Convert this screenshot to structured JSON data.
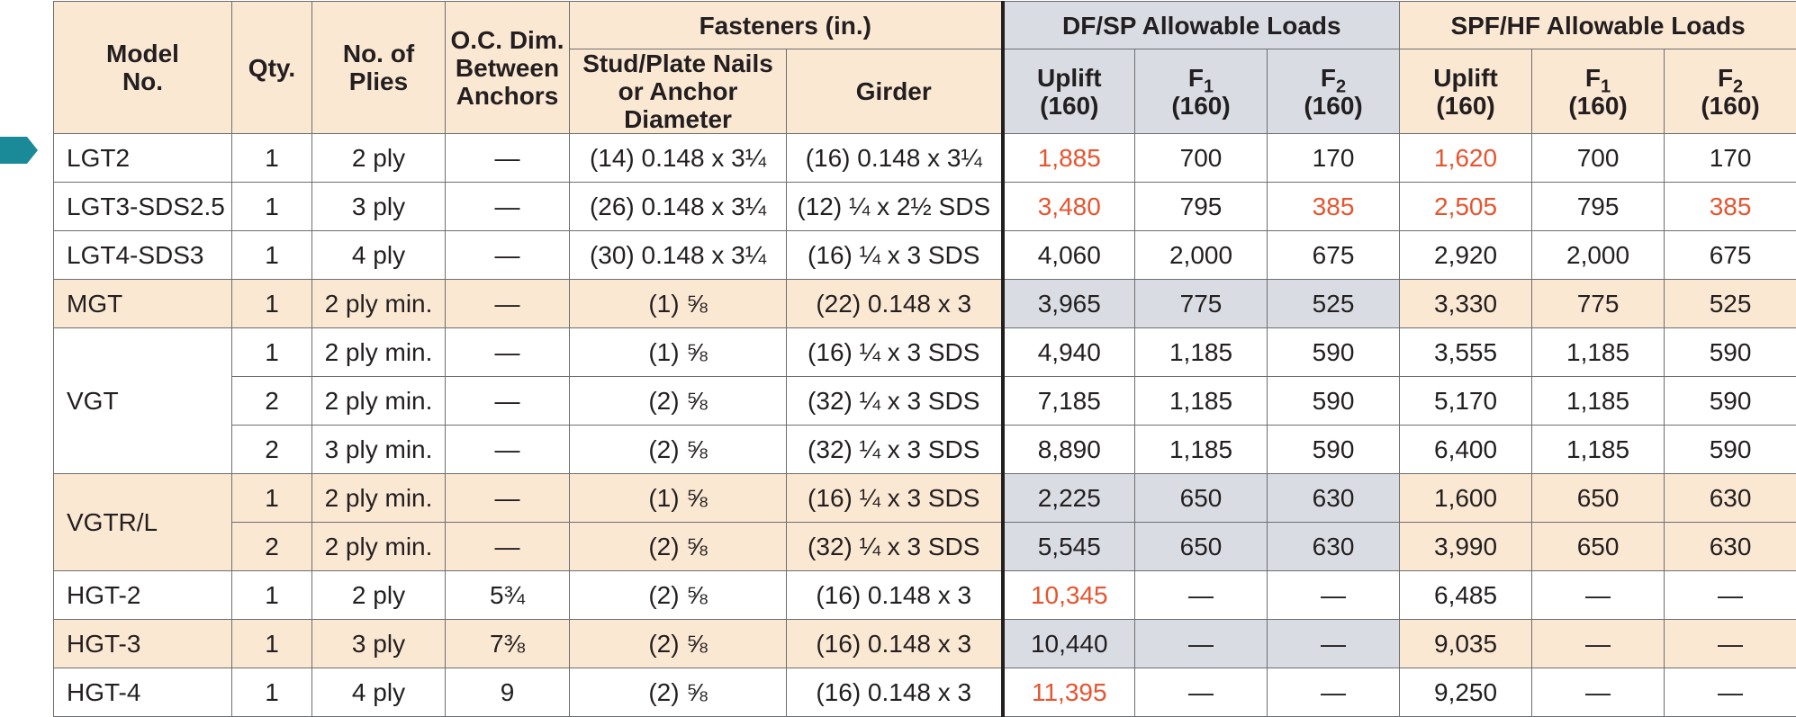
{
  "colors": {
    "peach": "#fbe8d3",
    "blue_gray": "#d9dde3",
    "red": "#e8542e",
    "teal": "#1a8a99"
  },
  "header": {
    "model_no": "Model No.",
    "qty": "Qty.",
    "plies": "No. of Plies",
    "oc_dim": "O.C. Dim. Between Anchors",
    "fasteners": "Fasteners (in.)",
    "stud_plate": "Stud/Plate Nails or Anchor Diameter",
    "girder": "Girder",
    "dfsp": "DF/SP Allowable Loads",
    "spfhf": "SPF/HF Allowable Loads",
    "uplift": "Uplift",
    "f": "F",
    "sub1": "1",
    "sub2": "2",
    "load": "(160)"
  },
  "rows": [
    {
      "model": "LGT2",
      "qty": "1",
      "plies": "2 ply",
      "oc": "—",
      "stud": "(14) 0.148 x 3¼",
      "girder": "(16) 0.148 x 3¼",
      "df_up": "1,885",
      "df_f1": "700",
      "df_f2": "170",
      "spf_up": "1,620",
      "spf_f1": "700",
      "spf_f2": "170"
    },
    {
      "model": "LGT3-SDS2.5",
      "qty": "1",
      "plies": "3 ply",
      "oc": "—",
      "stud": "(26) 0.148 x 3¼",
      "girder": "(12) ¼ x 2½ SDS",
      "df_up": "3,480",
      "df_f1": "795",
      "df_f2": "385",
      "spf_up": "2,505",
      "spf_f1": "795",
      "spf_f2": "385"
    },
    {
      "model": "LGT4-SDS3",
      "qty": "1",
      "plies": "4 ply",
      "oc": "—",
      "stud": "(30) 0.148 x 3¼",
      "girder": "(16) ¼ x 3 SDS",
      "df_up": "4,060",
      "df_f1": "2,000",
      "df_f2": "675",
      "spf_up": "2,920",
      "spf_f1": "2,000",
      "spf_f2": "675"
    },
    {
      "model": "MGT",
      "qty": "1",
      "plies": "2 ply min.",
      "oc": "—",
      "stud": "(1) ⅝",
      "girder": "(22) 0.148 x 3",
      "df_up": "3,965",
      "df_f1": "775",
      "df_f2": "525",
      "spf_up": "3,330",
      "spf_f1": "775",
      "spf_f2": "525"
    },
    {
      "model": "VGT",
      "qty": "1",
      "plies": "2 ply min.",
      "oc": "—",
      "stud": "(1) ⅝",
      "girder": "(16) ¼ x 3 SDS",
      "df_up": "4,940",
      "df_f1": "1,185",
      "df_f2": "590",
      "spf_up": "3,555",
      "spf_f1": "1,185",
      "spf_f2": "590"
    },
    {
      "qty": "2",
      "plies": "2 ply min.",
      "oc": "—",
      "stud": "(2) ⅝",
      "girder": "(32) ¼ x 3 SDS",
      "df_up": "7,185",
      "df_f1": "1,185",
      "df_f2": "590",
      "spf_up": "5,170",
      "spf_f1": "1,185",
      "spf_f2": "590"
    },
    {
      "qty": "2",
      "plies": "3 ply min.",
      "oc": "—",
      "stud": "(2) ⅝",
      "girder": "(32) ¼ x 3 SDS",
      "df_up": "8,890",
      "df_f1": "1,185",
      "df_f2": "590",
      "spf_up": "6,400",
      "spf_f1": "1,185",
      "spf_f2": "590"
    },
    {
      "model": "VGTR/L",
      "qty": "1",
      "plies": "2 ply min.",
      "oc": "—",
      "stud": "(1) ⅝",
      "girder": "(16) ¼ x 3 SDS",
      "df_up": "2,225",
      "df_f1": "650",
      "df_f2": "630",
      "spf_up": "1,600",
      "spf_f1": "650",
      "spf_f2": "630"
    },
    {
      "qty": "2",
      "plies": "2 ply min.",
      "oc": "—",
      "stud": "(2) ⅝",
      "girder": "(32) ¼ x 3 SDS",
      "df_up": "5,545",
      "df_f1": "650",
      "df_f2": "630",
      "spf_up": "3,990",
      "spf_f1": "650",
      "spf_f2": "630"
    },
    {
      "model": "HGT-2",
      "qty": "1",
      "plies": "2 ply",
      "oc": "5¾",
      "stud": "(2) ⅝",
      "girder": "(16) 0.148 x 3",
      "df_up": "10,345",
      "df_f1": "—",
      "df_f2": "—",
      "spf_up": "6,485",
      "spf_f1": "—",
      "spf_f2": "—"
    },
    {
      "model": "HGT-3",
      "qty": "1",
      "plies": "3 ply",
      "oc": "7⅜",
      "stud": "(2) ⅝",
      "girder": "(16) 0.148 x 3",
      "df_up": "10,440",
      "df_f1": "—",
      "df_f2": "—",
      "spf_up": "9,035",
      "spf_f1": "—",
      "spf_f2": "—"
    },
    {
      "model": "HGT-4",
      "qty": "1",
      "plies": "4 ply",
      "oc": "9",
      "stud": "(2) ⅝",
      "girder": "(16) 0.148 x 3",
      "df_up": "11,395",
      "df_f1": "—",
      "df_f2": "—",
      "spf_up": "9,250",
      "spf_f1": "—",
      "spf_f2": "—"
    }
  ]
}
